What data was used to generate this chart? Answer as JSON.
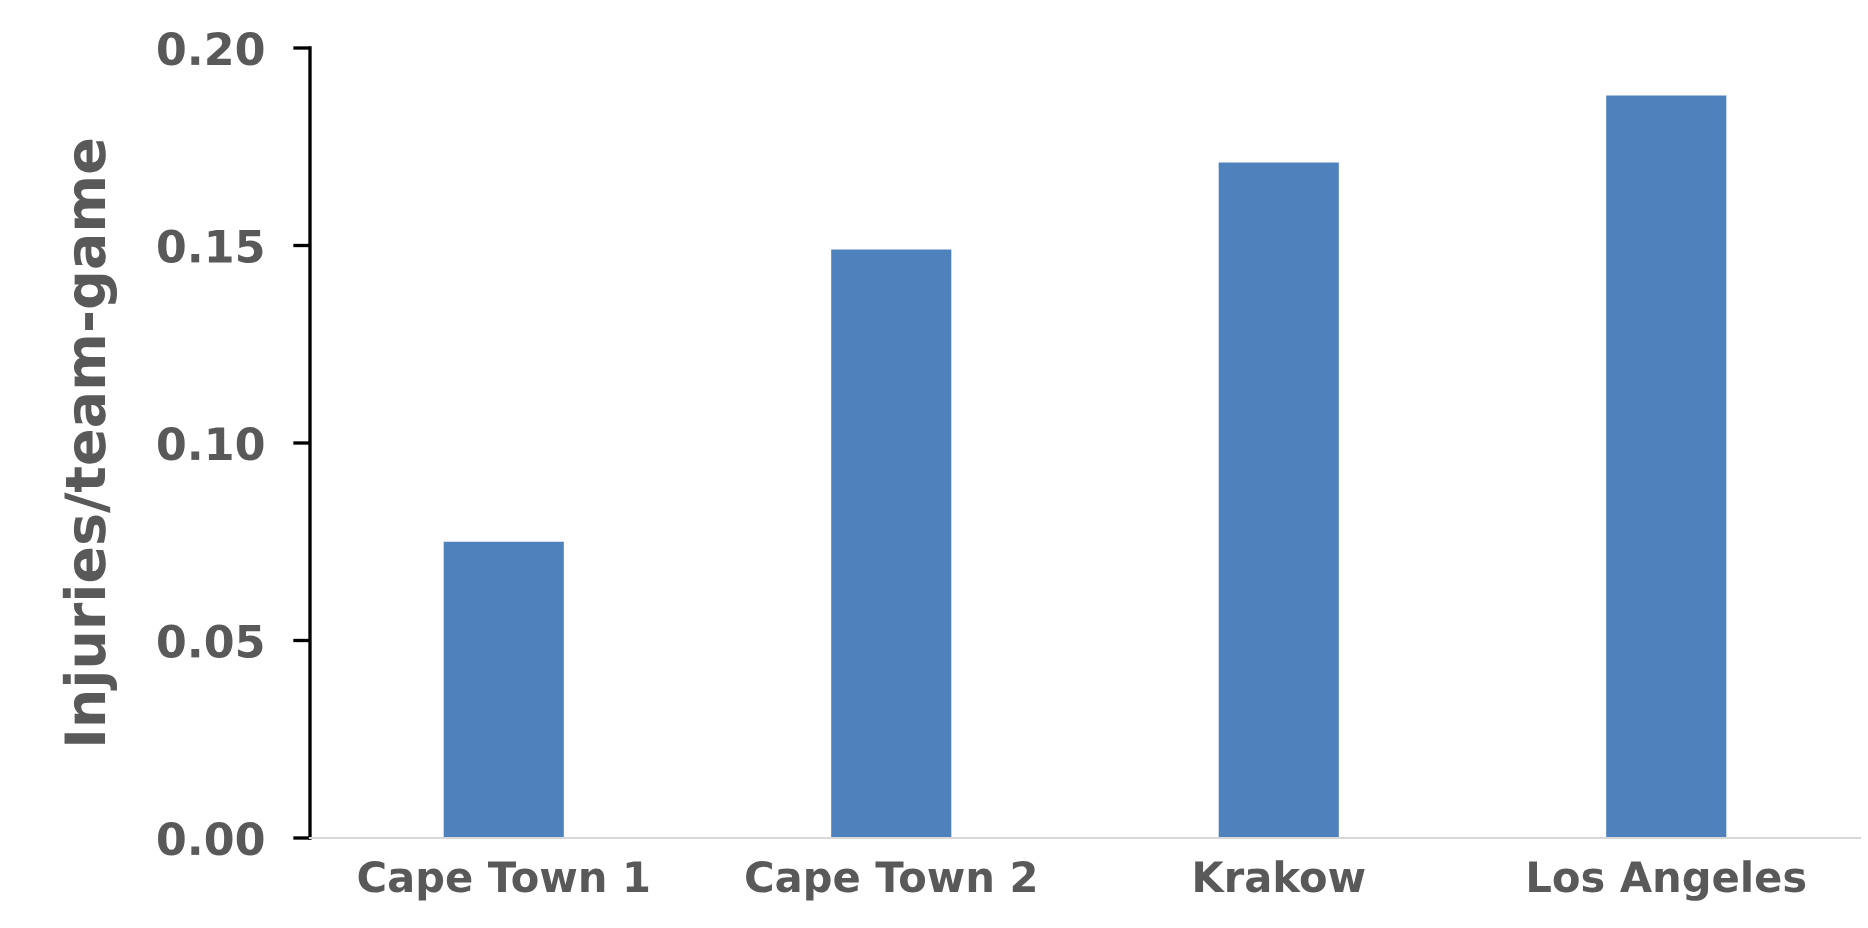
{
  "chart_data": {
    "type": "bar",
    "ylabel": "Injuries/team-game",
    "categories": [
      "Cape Town 1",
      "Cape Town 2",
      "Krakow",
      "Los Angeles"
    ],
    "values": [
      0.075,
      0.149,
      0.171,
      0.188
    ],
    "color": "#4f81bd",
    "ylim": [
      0,
      0.2
    ],
    "yticks": [
      {
        "value": 0,
        "label": "0.00"
      },
      {
        "value": 0.05,
        "label": "0.05"
      },
      {
        "value": 0.1,
        "label": "0.10"
      },
      {
        "value": 0.15,
        "label": "0.15"
      },
      {
        "value": 0.2,
        "label": "0.20"
      }
    ],
    "grid": false,
    "legend": false
  }
}
